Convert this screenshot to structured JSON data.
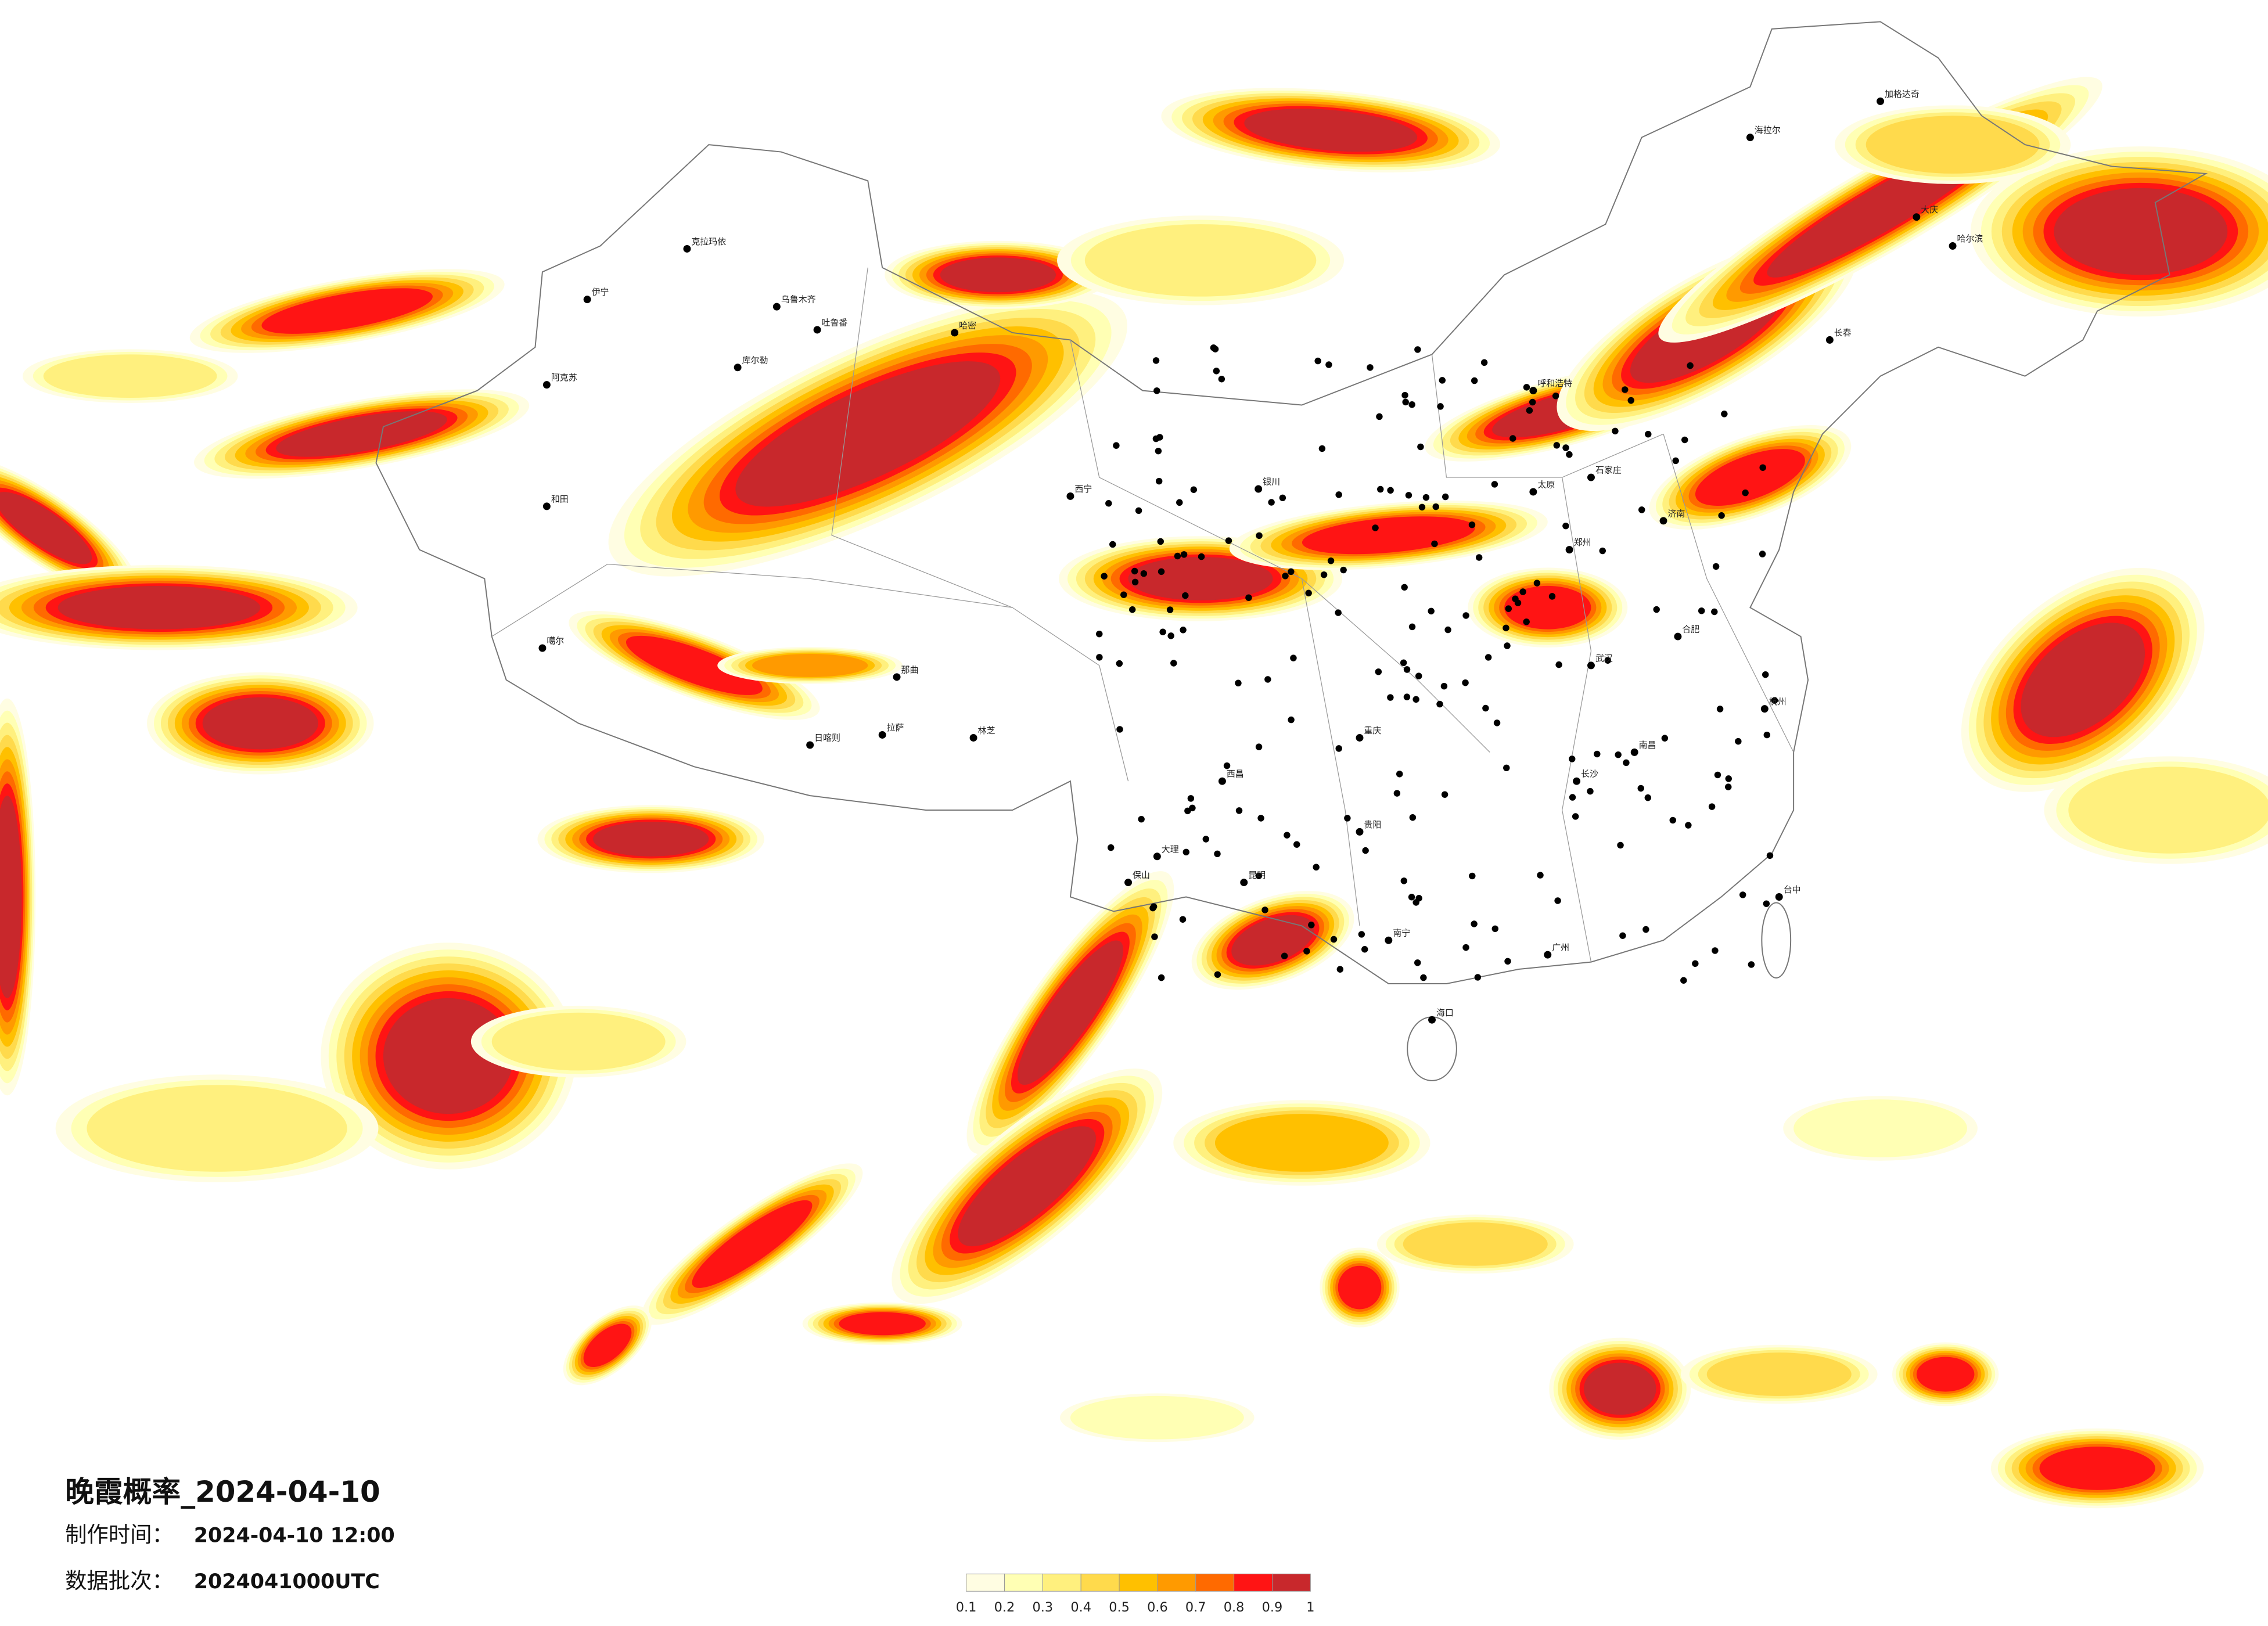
{
  "title": "晚霞概率_2024-04-10",
  "info": [
    {
      "label": "制作时间：",
      "value": "2024-04-10 12:00"
    },
    {
      "label": "数据批次：",
      "value": "2024041000UTC"
    }
  ],
  "colorbar": {
    "ticks": [
      0.1,
      0.2,
      0.3,
      0.4,
      0.5,
      0.6,
      0.7,
      0.8,
      0.9,
      1
    ],
    "colors": [
      "#fffde2",
      "#ffffb4",
      "#fff07e",
      "#ffda4c",
      "#ffc000",
      "#ff9a00",
      "#ff6a00",
      "#ff1414",
      "#c8282c"
    ]
  },
  "cities": [
    "克拉玛依",
    "乌鲁木齐",
    "吐鲁番",
    "哈密",
    "库尔勒",
    "阿克苏",
    "伊宁",
    "和田",
    "噶尔",
    "日喀则",
    "拉萨",
    "林芝",
    "那曲",
    "西宁",
    "银川",
    "呼和浩特",
    "哈尔滨",
    "大庆",
    "海拉尔",
    "加格达奇",
    "济南",
    "郑州",
    "武汉",
    "重庆",
    "贵阳",
    "昆明",
    "南宁",
    "广州",
    "杭州",
    "台中",
    "海口",
    "大理",
    "保山",
    "西昌",
    "长沙",
    "南昌",
    "合肥",
    "石家庄",
    "太原",
    "长春"
  ]
}
